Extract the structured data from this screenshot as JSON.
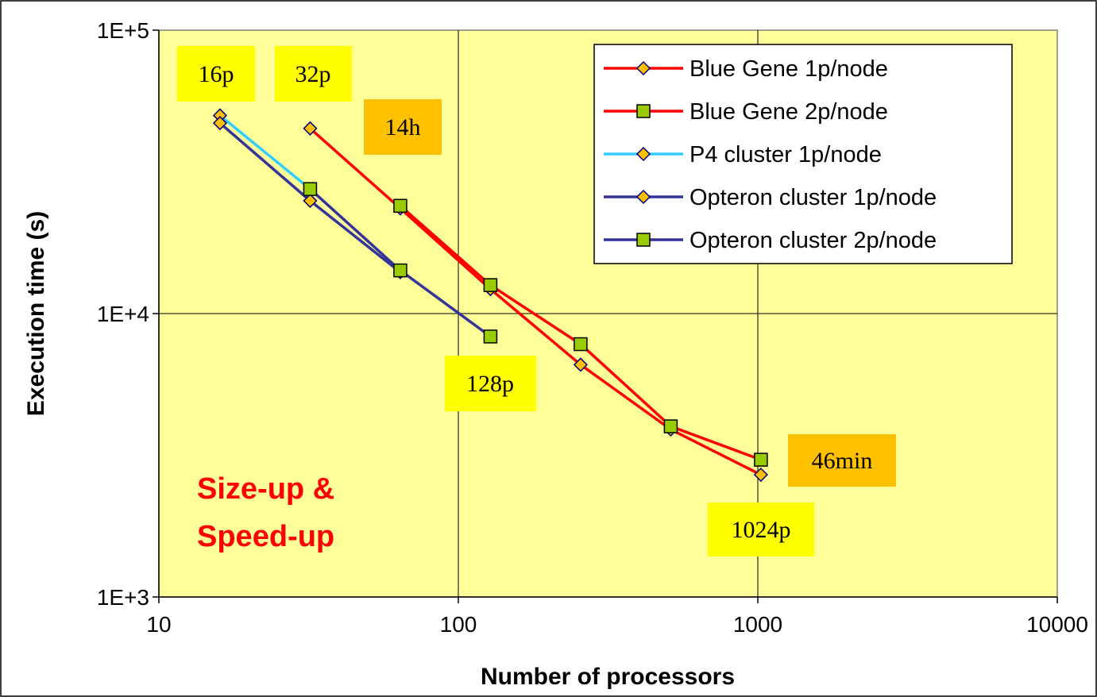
{
  "chart_data": {
    "type": "line",
    "xlabel": "Number of processors",
    "ylabel": "Execution time (s)",
    "xscale": "log",
    "yscale": "log",
    "xlim": [
      10,
      10000
    ],
    "ylim": [
      1000,
      100000
    ],
    "x_tick_labels": [
      "10",
      "100",
      "1000",
      "10000"
    ],
    "x_tick_values": [
      10,
      100,
      1000,
      10000
    ],
    "y_tick_labels": [
      "1E+3",
      "1E+4",
      "1E+5"
    ],
    "y_tick_values": [
      1000,
      10000,
      100000
    ],
    "grid": true,
    "plot_background": "#ffff99",
    "legend_position": "top-right",
    "series": [
      {
        "name": "Blue Gene 1p/node",
        "line_color": "#ff0000",
        "marker": "diamond",
        "marker_fill": "#ffc000",
        "marker_stroke": "#000080",
        "x": [
          32,
          64,
          128,
          256,
          512,
          1024
        ],
        "y": [
          45000,
          23500,
          12200,
          6600,
          3900,
          2700
        ]
      },
      {
        "name": "Blue Gene 2p/node",
        "line_color": "#ff0000",
        "marker": "square",
        "marker_fill": "#99cc00",
        "marker_stroke": "#000000",
        "x": [
          64,
          128,
          256,
          512,
          1024
        ],
        "y": [
          24000,
          12600,
          7800,
          4000,
          3050
        ]
      },
      {
        "name": "P4 cluster 1p/node",
        "line_color": "#33ccff",
        "marker": "diamond",
        "marker_fill": "#ffc000",
        "marker_stroke": "#000080",
        "x": [
          16,
          32
        ],
        "y": [
          50000,
          27500
        ]
      },
      {
        "name": "Opteron cluster 1p/node",
        "line_color": "#333399",
        "marker": "diamond",
        "marker_fill": "#ffc000",
        "marker_stroke": "#000080",
        "x": [
          16,
          32,
          64
        ],
        "y": [
          47000,
          25000,
          14000
        ]
      },
      {
        "name": "Opteron cluster 2p/node",
        "line_color": "#333399",
        "marker": "square",
        "marker_fill": "#99cc00",
        "marker_stroke": "#000000",
        "x": [
          32,
          64,
          128
        ],
        "y": [
          27500,
          14200,
          8300
        ]
      }
    ],
    "annotations": [
      {
        "text": "16p",
        "style": "yellow"
      },
      {
        "text": "32p",
        "style": "yellow"
      },
      {
        "text": "14h",
        "style": "orange"
      },
      {
        "text": "128p",
        "style": "yellow"
      },
      {
        "text": "46min",
        "style": "orange"
      },
      {
        "text": "1024p",
        "style": "yellow"
      }
    ],
    "overlay_text": [
      "Size-up &",
      "Speed-up"
    ],
    "annotation_colors": {
      "yellow": "#ffff00",
      "orange": "#ffc000"
    }
  }
}
